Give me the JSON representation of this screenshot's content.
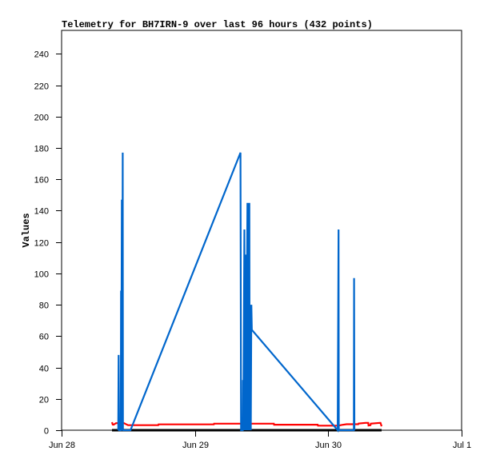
{
  "chart_data": {
    "type": "line",
    "title": "Telemetry for BH7IRN-9 over last 96 hours (432 points)",
    "xlabel": "",
    "ylabel": "Values",
    "x_unit": "hours after Jun 28 00:00",
    "xlim": [
      0,
      72
    ],
    "ylim": [
      0,
      255
    ],
    "x_ticks": [
      {
        "x": 0,
        "label": "Jun 28"
      },
      {
        "x": 24,
        "label": "Jun 29"
      },
      {
        "x": 48,
        "label": "Jun 30"
      },
      {
        "x": 72,
        "label": "Jul 1"
      }
    ],
    "y_ticks": [
      0,
      20,
      40,
      60,
      80,
      100,
      120,
      140,
      160,
      180,
      200,
      220,
      240
    ],
    "grid": false,
    "legend": "none",
    "series": [
      {
        "color": "#000000",
        "points": [
          [
            9.07,
            0
          ],
          [
            57.6,
            0
          ]
        ]
      },
      {
        "color": "#ff0000",
        "points": [
          [
            9.07,
            5.1
          ],
          [
            9.2,
            3.6
          ],
          [
            9.36,
            3.5
          ],
          [
            9.79,
            4.5
          ],
          [
            11.23,
            4.5
          ],
          [
            11.95,
            3.2
          ],
          [
            17.4,
            3.2
          ],
          [
            17.45,
            3.7
          ],
          [
            27.4,
            3.7
          ],
          [
            27.45,
            4.2
          ],
          [
            38.2,
            4.2
          ],
          [
            38.25,
            3.5
          ],
          [
            46.1,
            3.5
          ],
          [
            46.15,
            2.9
          ],
          [
            49.8,
            2.9
          ],
          [
            50.5,
            3.4
          ],
          [
            51.3,
            3.8
          ],
          [
            53.4,
            3.8
          ],
          [
            53.45,
            4.3
          ],
          [
            54.7,
            4.7
          ],
          [
            55.2,
            4.7
          ],
          [
            55.25,
            3.0
          ],
          [
            55.6,
            3.2
          ],
          [
            55.65,
            4.2
          ],
          [
            57.3,
            4.7
          ],
          [
            57.4,
            4.7
          ],
          [
            57.6,
            2.5
          ]
        ]
      },
      {
        "color": "#0066cc",
        "points": [
          [
            10.2,
            0
          ],
          [
            10.27,
            48
          ],
          [
            10.35,
            0
          ],
          [
            10.65,
            0
          ],
          [
            10.7,
            89
          ],
          [
            10.76,
            30
          ],
          [
            10.85,
            147
          ],
          [
            10.9,
            0
          ],
          [
            11.0,
            177
          ],
          [
            11.05,
            0
          ],
          [
            12.4,
            0
          ],
          [
            32.2,
            177
          ],
          [
            32.3,
            0
          ],
          [
            32.6,
            0
          ],
          [
            32.65,
            32
          ],
          [
            32.7,
            0
          ],
          [
            32.9,
            128
          ],
          [
            32.95,
            0
          ],
          [
            33.15,
            112
          ],
          [
            33.2,
            0
          ],
          [
            33.45,
            145
          ],
          [
            33.5,
            0
          ],
          [
            33.6,
            145
          ],
          [
            33.65,
            0
          ],
          [
            33.8,
            145
          ],
          [
            33.85,
            0
          ],
          [
            34.0,
            80
          ],
          [
            34.05,
            0
          ],
          [
            34.15,
            80
          ],
          [
            34.25,
            64
          ],
          [
            49.7,
            0
          ],
          [
            49.85,
            128
          ],
          [
            49.9,
            0
          ],
          [
            52.6,
            0
          ],
          [
            52.65,
            97
          ],
          [
            52.7,
            0
          ]
        ]
      }
    ]
  }
}
